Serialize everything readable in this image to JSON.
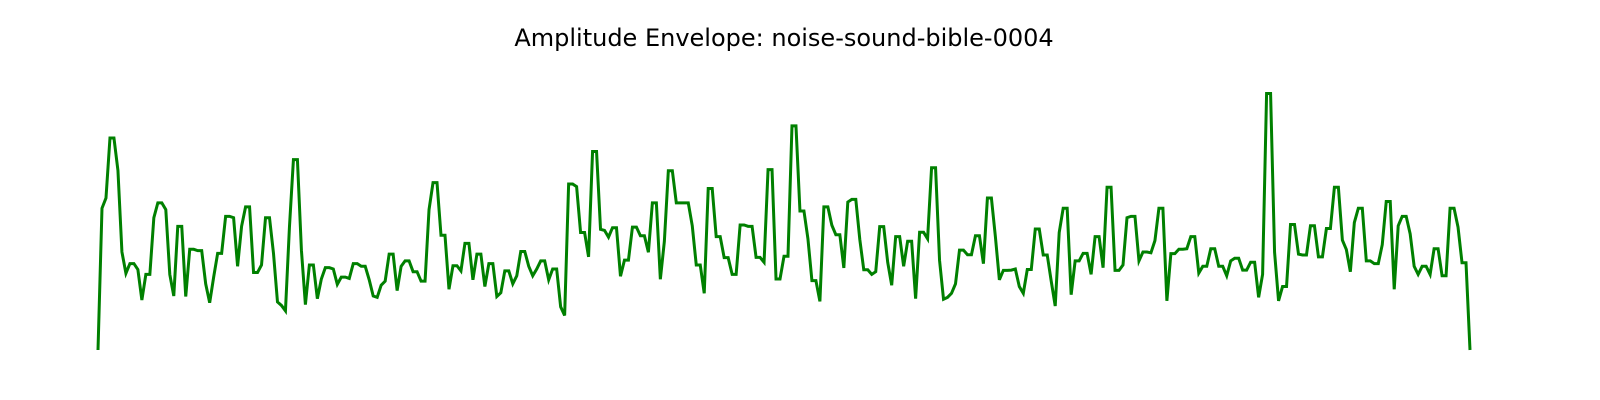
{
  "chart_data": {
    "type": "line",
    "title": "Amplitude Envelope: noise-sound-bible-0004",
    "xlabel": "",
    "ylabel": "",
    "axes_visible": false,
    "grid": false,
    "ylim": [
      0,
      1
    ],
    "series": [
      {
        "color": "#008000",
        "values": [
          0.0,
          0.525,
          0.563,
          0.785,
          0.785,
          0.665,
          0.363,
          0.284,
          0.32,
          0.32,
          0.298,
          0.185,
          0.28,
          0.28,
          0.49,
          0.545,
          0.545,
          0.52,
          0.28,
          0.2,
          0.458,
          0.458,
          0.198,
          0.373,
          0.373,
          0.368,
          0.368,
          0.245,
          0.175,
          0.27,
          0.358,
          0.358,
          0.495,
          0.495,
          0.49,
          0.31,
          0.458,
          0.53,
          0.53,
          0.287,
          0.287,
          0.315,
          0.49,
          0.49,
          0.358,
          0.178,
          0.165,
          0.145,
          0.455,
          0.705,
          0.705,
          0.37,
          0.168,
          0.315,
          0.315,
          0.19,
          0.263,
          0.305,
          0.305,
          0.3,
          0.243,
          0.27,
          0.27,
          0.265,
          0.32,
          0.32,
          0.31,
          0.31,
          0.26,
          0.2,
          0.195,
          0.24,
          0.255,
          0.355,
          0.355,
          0.22,
          0.31,
          0.33,
          0.33,
          0.29,
          0.29,
          0.255,
          0.255,
          0.52,
          0.62,
          0.62,
          0.425,
          0.425,
          0.225,
          0.312,
          0.312,
          0.293,
          0.395,
          0.395,
          0.26,
          0.355,
          0.355,
          0.235,
          0.32,
          0.32,
          0.198,
          0.212,
          0.293,
          0.293,
          0.245,
          0.275,
          0.365,
          0.365,
          0.31,
          0.275,
          0.3,
          0.33,
          0.33,
          0.26,
          0.3,
          0.3,
          0.16,
          0.128,
          0.615,
          0.615,
          0.605,
          0.435,
          0.435,
          0.345,
          0.735,
          0.735,
          0.447,
          0.443,
          0.418,
          0.453,
          0.453,
          0.273,
          0.333,
          0.333,
          0.455,
          0.455,
          0.423,
          0.423,
          0.362,
          0.545,
          0.545,
          0.262,
          0.402,
          0.664,
          0.664,
          0.545,
          0.545,
          0.545,
          0.545,
          0.46,
          0.315,
          0.315,
          0.21,
          0.598,
          0.598,
          0.42,
          0.42,
          0.342,
          0.342,
          0.28,
          0.28,
          0.463,
          0.463,
          0.458,
          0.458,
          0.343,
          0.343,
          0.325,
          0.668,
          0.668,
          0.263,
          0.263,
          0.347,
          0.347,
          0.83,
          0.83,
          0.515,
          0.515,
          0.412,
          0.257,
          0.257,
          0.18,
          0.53,
          0.53,
          0.462,
          0.427,
          0.427,
          0.304,
          0.548,
          0.558,
          0.558,
          0.41,
          0.297,
          0.297,
          0.28,
          0.29,
          0.457,
          0.457,
          0.325,
          0.24,
          0.42,
          0.42,
          0.31,
          0.403,
          0.403,
          0.19,
          0.436,
          0.436,
          0.412,
          0.675,
          0.675,
          0.332,
          0.188,
          0.195,
          0.21,
          0.245,
          0.37,
          0.37,
          0.353,
          0.353,
          0.423,
          0.423,
          0.32,
          0.563,
          0.563,
          0.42,
          0.26,
          0.295,
          0.295,
          0.296,
          0.3,
          0.235,
          0.21,
          0.298,
          0.298,
          0.448,
          0.448,
          0.352,
          0.352,
          0.255,
          0.163,
          0.435,
          0.525,
          0.525,
          0.205,
          0.33,
          0.33,
          0.358,
          0.358,
          0.28,
          0.42,
          0.42,
          0.305,
          0.603,
          0.603,
          0.295,
          0.295,
          0.315,
          0.49,
          0.495,
          0.495,
          0.33,
          0.363,
          0.363,
          0.36,
          0.405,
          0.525,
          0.525,
          0.182,
          0.357,
          0.357,
          0.373,
          0.373,
          0.375,
          0.42,
          0.42,
          0.285,
          0.31,
          0.31,
          0.375,
          0.375,
          0.31,
          0.31,
          0.275,
          0.33,
          0.34,
          0.34,
          0.296,
          0.296,
          0.325,
          0.325,
          0.195,
          0.28,
          0.95,
          0.95,
          0.362,
          0.182,
          0.235,
          0.235,
          0.465,
          0.465,
          0.355,
          0.352,
          0.352,
          0.46,
          0.46,
          0.345,
          0.345,
          0.45,
          0.45,
          0.603,
          0.603,
          0.407,
          0.372,
          0.29,
          0.472,
          0.525,
          0.525,
          0.33,
          0.33,
          0.32,
          0.32,
          0.39,
          0.55,
          0.55,
          0.225,
          0.46,
          0.495,
          0.495,
          0.43,
          0.31,
          0.28,
          0.31,
          0.31,
          0.28,
          0.375,
          0.375,
          0.275,
          0.275,
          0.525,
          0.525,
          0.455,
          0.323,
          0.323,
          0.0
        ]
      }
    ]
  }
}
